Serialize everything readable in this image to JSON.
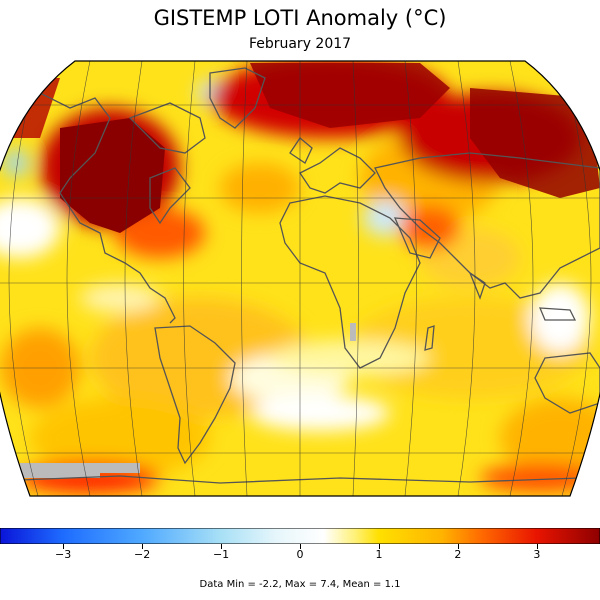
{
  "title": "GISTEMP LOTI Anomaly (°C)",
  "subtitle": "February 2017",
  "stats_text": "Data Min = -2.2, Max = 7.4, Mean = 1.1",
  "colorbar": {
    "ticks": [
      {
        "value": -3,
        "label": "−3"
      },
      {
        "value": -2,
        "label": "−2"
      },
      {
        "value": -1,
        "label": "−1"
      },
      {
        "value": 0,
        "label": "0"
      },
      {
        "value": 1,
        "label": "1"
      },
      {
        "value": 2,
        "label": "2"
      },
      {
        "value": 3,
        "label": "3"
      }
    ],
    "range": [
      -3.8,
      3.8
    ],
    "stops": [
      {
        "value": -3.8,
        "color": "#0a14d8"
      },
      {
        "value": -3.0,
        "color": "#1e6cff"
      },
      {
        "value": -2.0,
        "color": "#4fa9ff"
      },
      {
        "value": -1.0,
        "color": "#a8e0f6"
      },
      {
        "value": -0.3,
        "color": "#e6f6fb"
      },
      {
        "value": 0.3,
        "color": "#ffffff"
      },
      {
        "value": 0.7,
        "color": "#fff176"
      },
      {
        "value": 1.0,
        "color": "#ffe000"
      },
      {
        "value": 1.8,
        "color": "#ffb300"
      },
      {
        "value": 2.3,
        "color": "#ff6a00"
      },
      {
        "value": 3.0,
        "color": "#e81400"
      },
      {
        "value": 3.8,
        "color": "#8e0000"
      }
    ]
  },
  "colors": {
    "background": "#ffffff",
    "coastline": "#555555",
    "gridline": "#333333",
    "no_data": "#bbbbbb"
  }
}
